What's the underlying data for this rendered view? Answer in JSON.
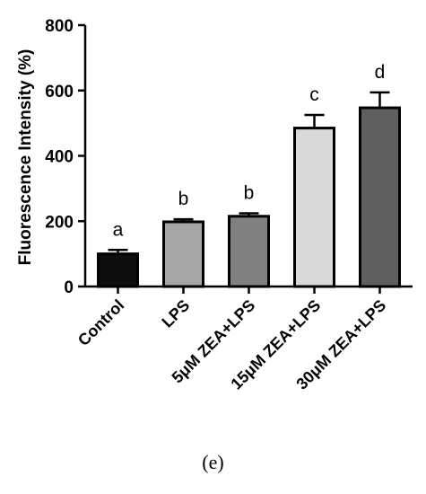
{
  "chart_data": {
    "type": "bar",
    "ylabel": "Fluorescence Intensity (%)",
    "ylim": [
      0,
      800
    ],
    "yticks": [
      0,
      200,
      400,
      600,
      800
    ],
    "categories": [
      "Control",
      "LPS",
      "5μM ZEA+LPS",
      "15μM ZEA+LPS",
      "30μM ZEA+LPS"
    ],
    "values": [
      100,
      198,
      215,
      485,
      547
    ],
    "errors": [
      12,
      8,
      9,
      40,
      47
    ],
    "significance": [
      "a",
      "b",
      "b",
      "c",
      "d"
    ],
    "colors": [
      "#0d0d0d",
      "#a6a6a6",
      "#808080",
      "#d9d9d9",
      "#5f5f5f"
    ],
    "grid": false,
    "legend": "none"
  },
  "caption": "(e)"
}
